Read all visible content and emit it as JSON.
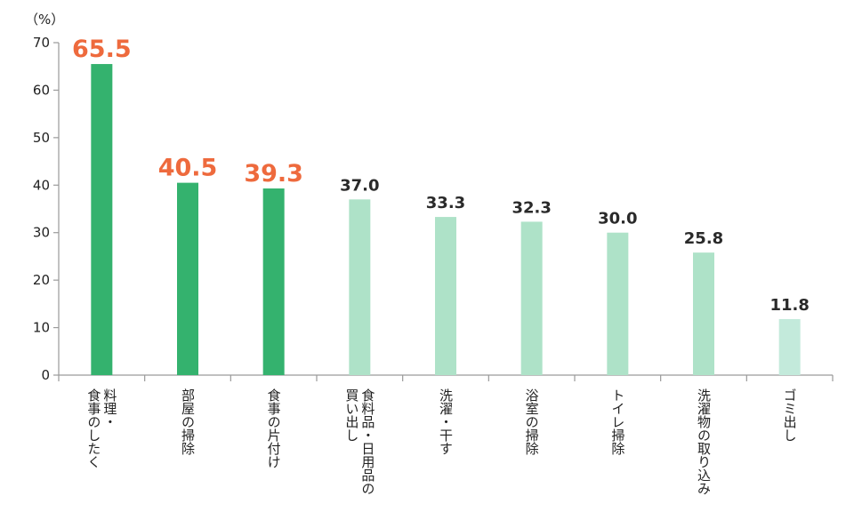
{
  "chart_data": {
    "type": "bar",
    "unit_label": "（%）",
    "categories": [
      "料理・食事のしたく",
      "部屋の掃除",
      "食事の片付け",
      "食料品・日用品の買い出し",
      "洗濯・干す",
      "浴室の掃除",
      "トイレ掃除",
      "洗濯物の取り込み",
      "ゴミ出し"
    ],
    "category_lines": [
      [
        "料理・",
        "食事のしたく"
      ],
      [
        "部屋の掃除"
      ],
      [
        "食事の片付け"
      ],
      [
        "食料品・日用品の",
        "買い出し"
      ],
      [
        "洗濯・干す"
      ],
      [
        "浴室の掃除"
      ],
      [
        "トイレ掃除"
      ],
      [
        "洗濯物の取り込み"
      ],
      [
        "ゴミ出し"
      ]
    ],
    "values": [
      65.5,
      40.5,
      39.3,
      37.0,
      33.3,
      32.3,
      30.0,
      25.8,
      11.8
    ],
    "value_labels": [
      "65.5",
      "40.5",
      "39.3",
      "37.0",
      "33.3",
      "32.3",
      "30.0",
      "25.8",
      "11.8"
    ],
    "highlighted": [
      true,
      true,
      true,
      false,
      false,
      false,
      false,
      false,
      false
    ],
    "ylim": [
      0,
      70
    ],
    "yticks": [
      0,
      10,
      20,
      30,
      40,
      50,
      60,
      70
    ],
    "grid": false,
    "colors": {
      "highlight_bar": "#34b26e",
      "bar": "#aee2c8",
      "last_bar": "#c3eadb",
      "highlight_label": "#ee6a3d",
      "label": "#2a2a2a",
      "axis": "#9a9a9a"
    }
  }
}
